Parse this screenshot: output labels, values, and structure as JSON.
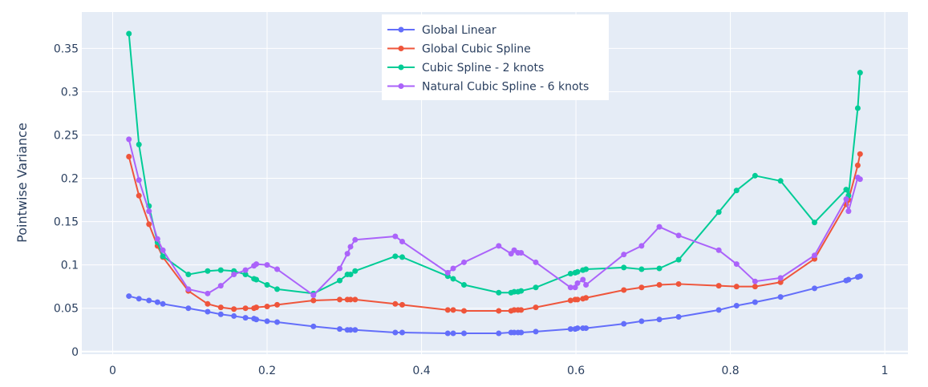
{
  "chart_data": {
    "type": "line",
    "title": "",
    "xlabel": "",
    "ylabel": "Pointwise Variance",
    "xlim": [
      -0.04,
      1.03
    ],
    "ylim": [
      -0.003,
      0.392
    ],
    "xticks": [
      0,
      0.2,
      0.4,
      0.6,
      0.8,
      1
    ],
    "xtick_labels": [
      "0",
      "0.2",
      "0.4",
      "0.6",
      "0.8",
      "1"
    ],
    "yticks": [
      0,
      0.05,
      0.1,
      0.15,
      0.2,
      0.25,
      0.3,
      0.35
    ],
    "ytick_labels": [
      "0",
      "0.05",
      "0.1",
      "0.15",
      "0.2",
      "0.25",
      "0.3",
      "0.35"
    ],
    "grid": true,
    "legend_position": "top-center",
    "plot_bgcolor": "#e5ecf6",
    "x": [
      0.021,
      0.034,
      0.047,
      0.058,
      0.065,
      0.098,
      0.123,
      0.14,
      0.157,
      0.172,
      0.183,
      0.186,
      0.2,
      0.213,
      0.26,
      0.294,
      0.304,
      0.308,
      0.314,
      0.366,
      0.375,
      0.434,
      0.441,
      0.455,
      0.5,
      0.516,
      0.52,
      0.525,
      0.529,
      0.548,
      0.593,
      0.599,
      0.602,
      0.609,
      0.613,
      0.662,
      0.685,
      0.708,
      0.733,
      0.785,
      0.808,
      0.832,
      0.865,
      0.909,
      0.95,
      0.953,
      0.965,
      0.968
    ],
    "series": [
      {
        "name": "Global Linear",
        "color": "#636efa",
        "values": [
          0.064,
          0.061,
          0.059,
          0.057,
          0.055,
          0.05,
          0.046,
          0.043,
          0.041,
          0.039,
          0.038,
          0.037,
          0.035,
          0.034,
          0.029,
          0.026,
          0.025,
          0.025,
          0.025,
          0.022,
          0.022,
          0.021,
          0.021,
          0.021,
          0.021,
          0.022,
          0.022,
          0.022,
          0.022,
          0.023,
          0.026,
          0.026,
          0.027,
          0.027,
          0.027,
          0.032,
          0.035,
          0.037,
          0.04,
          0.048,
          0.053,
          0.057,
          0.063,
          0.073,
          0.082,
          0.083,
          0.086,
          0.087
        ]
      },
      {
        "name": "Global Cubic Spline",
        "color": "#ef553b",
        "values": [
          0.225,
          0.18,
          0.147,
          0.122,
          0.109,
          0.07,
          0.055,
          0.051,
          0.049,
          0.05,
          0.05,
          0.051,
          0.052,
          0.054,
          0.059,
          0.06,
          0.06,
          0.06,
          0.06,
          0.055,
          0.054,
          0.048,
          0.048,
          0.047,
          0.047,
          0.047,
          0.048,
          0.048,
          0.048,
          0.051,
          0.059,
          0.06,
          0.06,
          0.061,
          0.062,
          0.071,
          0.074,
          0.077,
          0.078,
          0.076,
          0.075,
          0.075,
          0.08,
          0.107,
          0.17,
          0.175,
          0.215,
          0.228
        ]
      },
      {
        "name": "Cubic Spline - 2 knots",
        "color": "#00cc96",
        "values": [
          0.367,
          0.239,
          0.168,
          0.126,
          0.11,
          0.089,
          0.093,
          0.094,
          0.093,
          0.089,
          0.084,
          0.083,
          0.077,
          0.072,
          0.067,
          0.082,
          0.089,
          0.089,
          0.093,
          0.11,
          0.109,
          0.087,
          0.084,
          0.077,
          0.068,
          0.068,
          0.069,
          0.069,
          0.07,
          0.074,
          0.09,
          0.091,
          0.092,
          0.094,
          0.095,
          0.097,
          0.095,
          0.096,
          0.106,
          0.161,
          0.186,
          0.203,
          0.197,
          0.149,
          0.187,
          0.18,
          0.281,
          0.322
        ]
      },
      {
        "name": "Natural Cubic Spline - 6 knots",
        "color": "#ab63fa",
        "values": [
          0.245,
          0.198,
          0.162,
          0.13,
          0.117,
          0.072,
          0.067,
          0.076,
          0.089,
          0.094,
          0.099,
          0.101,
          0.1,
          0.095,
          0.065,
          0.096,
          0.113,
          0.121,
          0.129,
          0.133,
          0.127,
          0.091,
          0.096,
          0.103,
          0.122,
          0.113,
          0.117,
          0.114,
          0.114,
          0.103,
          0.074,
          0.074,
          0.079,
          0.083,
          0.077,
          0.112,
          0.122,
          0.144,
          0.134,
          0.117,
          0.101,
          0.081,
          0.085,
          0.111,
          0.176,
          0.162,
          0.201,
          0.199
        ]
      }
    ]
  }
}
